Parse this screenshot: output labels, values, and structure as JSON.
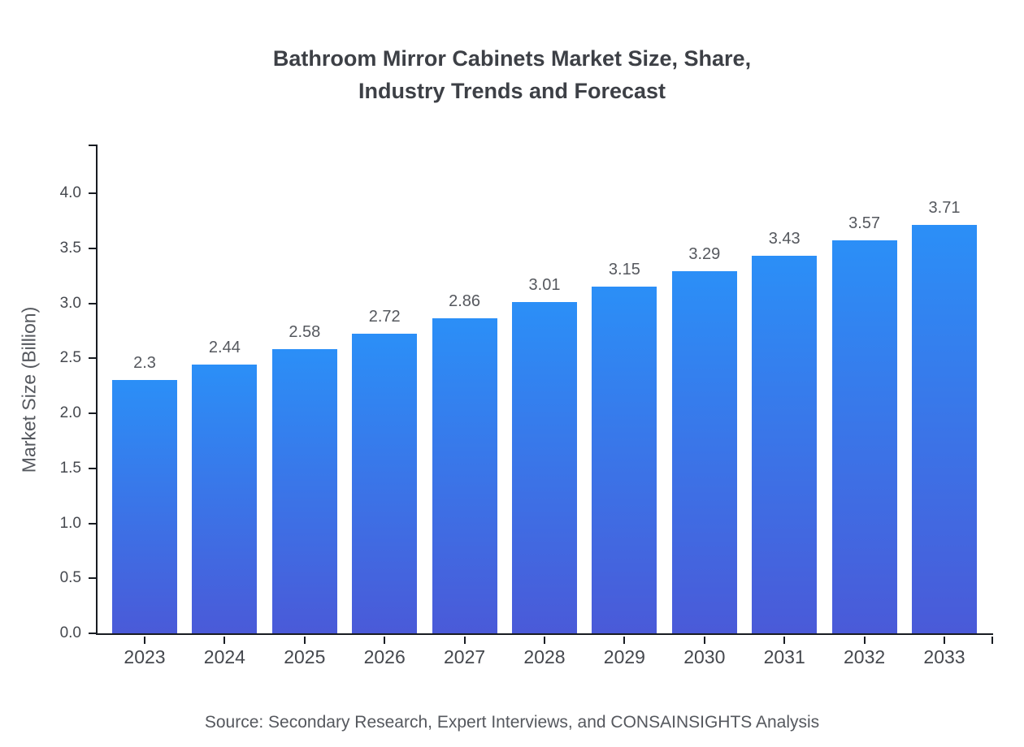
{
  "title": {
    "line1": "Bathroom Mirror Cabinets Market Size, Share,",
    "line2": "Industry Trends and Forecast"
  },
  "source": "Source: Secondary Research, Expert Interviews, and CONSAINSIGHTS Analysis",
  "chart_data": {
    "type": "bar",
    "title": "Bathroom Mirror Cabinets Market Size, Share, Industry Trends and Forecast",
    "categories": [
      "2023",
      "2024",
      "2025",
      "2026",
      "2027",
      "2028",
      "2029",
      "2030",
      "2031",
      "2032",
      "2033"
    ],
    "values": [
      2.3,
      2.44,
      2.58,
      2.72,
      2.86,
      3.01,
      3.15,
      3.29,
      3.43,
      3.57,
      3.71
    ],
    "value_labels": [
      "2.3",
      "2.44",
      "2.58",
      "2.72",
      "2.86",
      "3.01",
      "3.15",
      "3.29",
      "3.43",
      "3.57",
      "3.71"
    ],
    "xlabel": "",
    "ylabel": "Market Size (Billion)",
    "ylim": [
      0.0,
      4.5
    ],
    "yticks": [
      0.0,
      0.5,
      1.0,
      1.5,
      2.0,
      2.5,
      3.0,
      3.5,
      4.0
    ],
    "grid": false,
    "legend": "none",
    "colors": {
      "bar_gradient_top": "#2b8ff7",
      "bar_gradient_bottom": "#4a5ad8",
      "axis": "#181c22",
      "text": "#55585e"
    }
  }
}
